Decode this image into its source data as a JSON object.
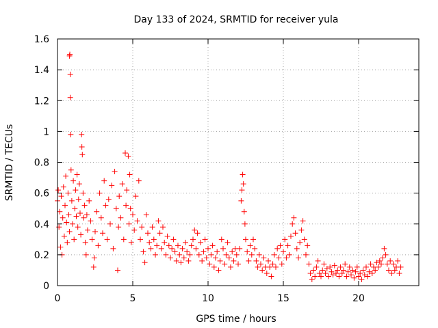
{
  "chart_data": {
    "type": "scatter",
    "title": "Day 133 of 2024, SRMTID for receiver yula",
    "xlabel": "GPS time / hours",
    "ylabel": "SRMTID / TECUs",
    "xlim": [
      0,
      24
    ],
    "ylim": [
      0,
      1.6
    ],
    "x_ticks": [
      0,
      5,
      10,
      15,
      20
    ],
    "x_tick_labels": [
      "0",
      "5",
      "10",
      "15",
      "20"
    ],
    "y_ticks": [
      0,
      0.2,
      0.4,
      0.6,
      0.8,
      1,
      1.2,
      1.4,
      1.6
    ],
    "y_tick_labels": [
      "0",
      "0.2",
      "0.4",
      "0.6",
      "0.8",
      "1",
      "1.2",
      "1.4",
      "1.6"
    ],
    "grid": true,
    "marker": "+",
    "series": [
      {
        "name": "SRMTID",
        "color": "#ff0000",
        "points": [
          [
            0.0,
            0.55
          ],
          [
            0.05,
            0.62
          ],
          [
            0.1,
            0.38
          ],
          [
            0.15,
            0.48
          ],
          [
            0.2,
            0.25
          ],
          [
            0.25,
            0.58
          ],
          [
            0.3,
            0.2
          ],
          [
            0.35,
            0.44
          ],
          [
            0.4,
            0.64
          ],
          [
            0.45,
            0.32
          ],
          [
            0.5,
            0.52
          ],
          [
            0.55,
            0.71
          ],
          [
            0.6,
            0.41
          ],
          [
            0.65,
            0.28
          ],
          [
            0.7,
            0.6
          ],
          [
            0.75,
            0.46
          ],
          [
            0.8,
            0.35
          ],
          [
            0.8,
            1.49
          ],
          [
            0.82,
            1.5
          ],
          [
            0.85,
            1.37
          ],
          [
            0.85,
            1.22
          ],
          [
            0.88,
            0.98
          ],
          [
            0.9,
            0.75
          ],
          [
            0.95,
            0.55
          ],
          [
            1.0,
            0.4
          ],
          [
            1.05,
            0.68
          ],
          [
            1.1,
            0.3
          ],
          [
            1.15,
            0.5
          ],
          [
            1.2,
            0.62
          ],
          [
            1.25,
            0.45
          ],
          [
            1.3,
            0.72
          ],
          [
            1.35,
            0.38
          ],
          [
            1.4,
            0.56
          ],
          [
            1.45,
            0.66
          ],
          [
            1.5,
            0.47
          ],
          [
            1.55,
            0.33
          ],
          [
            1.6,
            0.98
          ],
          [
            1.62,
            0.9
          ],
          [
            1.65,
            0.85
          ],
          [
            1.7,
            0.6
          ],
          [
            1.75,
            0.44
          ],
          [
            1.8,
            0.52
          ],
          [
            1.85,
            0.28
          ],
          [
            1.9,
            0.2
          ],
          [
            1.95,
            0.46
          ],
          [
            2.0,
            0.36
          ],
          [
            2.1,
            0.55
          ],
          [
            2.2,
            0.42
          ],
          [
            2.3,
            0.3
          ],
          [
            2.4,
            0.12
          ],
          [
            2.45,
            0.18
          ],
          [
            2.5,
            0.35
          ],
          [
            2.6,
            0.48
          ],
          [
            2.7,
            0.26
          ],
          [
            2.8,
            0.6
          ],
          [
            2.9,
            0.44
          ],
          [
            3.0,
            0.34
          ],
          [
            3.1,
            0.68
          ],
          [
            3.2,
            0.52
          ],
          [
            3.3,
            0.3
          ],
          [
            3.4,
            0.56
          ],
          [
            3.5,
            0.4
          ],
          [
            3.6,
            0.65
          ],
          [
            3.7,
            0.24
          ],
          [
            3.8,
            0.74
          ],
          [
            3.9,
            0.5
          ],
          [
            4.0,
            0.1
          ],
          [
            4.05,
            0.38
          ],
          [
            4.1,
            0.58
          ],
          [
            4.2,
            0.44
          ],
          [
            4.3,
            0.66
          ],
          [
            4.4,
            0.3
          ],
          [
            4.5,
            0.86
          ],
          [
            4.55,
            0.52
          ],
          [
            4.6,
            0.62
          ],
          [
            4.7,
            0.84
          ],
          [
            4.75,
            0.4
          ],
          [
            4.8,
            0.72
          ],
          [
            4.85,
            0.5
          ],
          [
            4.9,
            0.28
          ],
          [
            5.0,
            0.46
          ],
          [
            5.1,
            0.36
          ],
          [
            5.2,
            0.58
          ],
          [
            5.3,
            0.42
          ],
          [
            5.4,
            0.68
          ],
          [
            5.5,
            0.3
          ],
          [
            5.6,
            0.38
          ],
          [
            5.7,
            0.22
          ],
          [
            5.8,
            0.15
          ],
          [
            5.9,
            0.46
          ],
          [
            6.0,
            0.34
          ],
          [
            6.1,
            0.28
          ],
          [
            6.2,
            0.24
          ],
          [
            6.3,
            0.38
          ],
          [
            6.4,
            0.3
          ],
          [
            6.5,
            0.2
          ],
          [
            6.6,
            0.26
          ],
          [
            6.7,
            0.42
          ],
          [
            6.8,
            0.34
          ],
          [
            6.9,
            0.24
          ],
          [
            7.0,
            0.38
          ],
          [
            7.1,
            0.28
          ],
          [
            7.2,
            0.2
          ],
          [
            7.3,
            0.32
          ],
          [
            7.4,
            0.26
          ],
          [
            7.5,
            0.18
          ],
          [
            7.6,
            0.24
          ],
          [
            7.7,
            0.3
          ],
          [
            7.8,
            0.22
          ],
          [
            7.9,
            0.16
          ],
          [
            8.0,
            0.26
          ],
          [
            8.1,
            0.2
          ],
          [
            8.2,
            0.15
          ],
          [
            8.3,
            0.24
          ],
          [
            8.4,
            0.18
          ],
          [
            8.5,
            0.28
          ],
          [
            8.6,
            0.22
          ],
          [
            8.7,
            0.16
          ],
          [
            8.8,
            0.2
          ],
          [
            8.9,
            0.26
          ],
          [
            9.0,
            0.3
          ],
          [
            9.1,
            0.36
          ],
          [
            9.2,
            0.24
          ],
          [
            9.3,
            0.34
          ],
          [
            9.4,
            0.2
          ],
          [
            9.5,
            0.28
          ],
          [
            9.6,
            0.16
          ],
          [
            9.7,
            0.22
          ],
          [
            9.8,
            0.3
          ],
          [
            9.9,
            0.18
          ],
          [
            10.0,
            0.24
          ],
          [
            10.1,
            0.14
          ],
          [
            10.2,
            0.2
          ],
          [
            10.3,
            0.26
          ],
          [
            10.4,
            0.12
          ],
          [
            10.5,
            0.18
          ],
          [
            10.6,
            0.22
          ],
          [
            10.7,
            0.1
          ],
          [
            10.8,
            0.16
          ],
          [
            10.9,
            0.3
          ],
          [
            11.0,
            0.24
          ],
          [
            11.1,
            0.14
          ],
          [
            11.2,
            0.2
          ],
          [
            11.3,
            0.28
          ],
          [
            11.4,
            0.18
          ],
          [
            11.5,
            0.12
          ],
          [
            11.6,
            0.22
          ],
          [
            11.7,
            0.16
          ],
          [
            11.8,
            0.24
          ],
          [
            11.9,
            0.2
          ],
          [
            12.0,
            0.14
          ],
          [
            12.1,
            0.24
          ],
          [
            12.2,
            0.55
          ],
          [
            12.25,
            0.62
          ],
          [
            12.3,
            0.72
          ],
          [
            12.35,
            0.66
          ],
          [
            12.4,
            0.48
          ],
          [
            12.45,
            0.4
          ],
          [
            12.5,
            0.3
          ],
          [
            12.6,
            0.22
          ],
          [
            12.7,
            0.16
          ],
          [
            12.8,
            0.26
          ],
          [
            12.9,
            0.2
          ],
          [
            13.0,
            0.3
          ],
          [
            13.1,
            0.24
          ],
          [
            13.2,
            0.16
          ],
          [
            13.3,
            0.12
          ],
          [
            13.4,
            0.2
          ],
          [
            13.5,
            0.14
          ],
          [
            13.6,
            0.1
          ],
          [
            13.7,
            0.18
          ],
          [
            13.8,
            0.12
          ],
          [
            13.9,
            0.08
          ],
          [
            14.0,
            0.16
          ],
          [
            14.1,
            0.12
          ],
          [
            14.2,
            0.06
          ],
          [
            14.3,
            0.14
          ],
          [
            14.4,
            0.2
          ],
          [
            14.5,
            0.12
          ],
          [
            14.6,
            0.24
          ],
          [
            14.7,
            0.18
          ],
          [
            14.8,
            0.26
          ],
          [
            14.9,
            0.14
          ],
          [
            15.0,
            0.22
          ],
          [
            15.1,
            0.3
          ],
          [
            15.2,
            0.18
          ],
          [
            15.3,
            0.26
          ],
          [
            15.4,
            0.2
          ],
          [
            15.5,
            0.32
          ],
          [
            15.6,
            0.4
          ],
          [
            15.7,
            0.44
          ],
          [
            15.8,
            0.34
          ],
          [
            15.9,
            0.24
          ],
          [
            16.0,
            0.18
          ],
          [
            16.1,
            0.28
          ],
          [
            16.2,
            0.36
          ],
          [
            16.3,
            0.42
          ],
          [
            16.4,
            0.3
          ],
          [
            16.5,
            0.2
          ],
          [
            16.6,
            0.26
          ],
          [
            16.7,
            0.14
          ],
          [
            16.8,
            0.08
          ],
          [
            16.9,
            0.04
          ],
          [
            17.0,
            0.1
          ],
          [
            17.1,
            0.06
          ],
          [
            17.2,
            0.12
          ],
          [
            17.3,
            0.16
          ],
          [
            17.4,
            0.08
          ],
          [
            17.5,
            0.06
          ],
          [
            17.6,
            0.1
          ],
          [
            17.7,
            0.14
          ],
          [
            17.8,
            0.08
          ],
          [
            17.9,
            0.11
          ],
          [
            18.0,
            0.06
          ],
          [
            18.1,
            0.12
          ],
          [
            18.2,
            0.09
          ],
          [
            18.3,
            0.07
          ],
          [
            18.4,
            0.13
          ],
          [
            18.5,
            0.08
          ],
          [
            18.6,
            0.1
          ],
          [
            18.7,
            0.06
          ],
          [
            18.8,
            0.12
          ],
          [
            18.9,
            0.08
          ],
          [
            19.0,
            0.1
          ],
          [
            19.1,
            0.14
          ],
          [
            19.2,
            0.06
          ],
          [
            19.3,
            0.09
          ],
          [
            19.4,
            0.12
          ],
          [
            19.5,
            0.07
          ],
          [
            19.6,
            0.1
          ],
          [
            19.7,
            0.05
          ],
          [
            19.8,
            0.09
          ],
          [
            19.9,
            0.12
          ],
          [
            20.0,
            0.06
          ],
          [
            20.1,
            0.08
          ],
          [
            20.2,
            0.04
          ],
          [
            20.3,
            0.1
          ],
          [
            20.4,
            0.07
          ],
          [
            20.5,
            0.12
          ],
          [
            20.6,
            0.06
          ],
          [
            20.7,
            0.09
          ],
          [
            20.8,
            0.14
          ],
          [
            20.9,
            0.08
          ],
          [
            21.0,
            0.12
          ],
          [
            21.1,
            0.1
          ],
          [
            21.2,
            0.15
          ],
          [
            21.3,
            0.12
          ],
          [
            21.4,
            0.16
          ],
          [
            21.5,
            0.14
          ],
          [
            21.6,
            0.18
          ],
          [
            21.7,
            0.24
          ],
          [
            21.8,
            0.2
          ],
          [
            21.9,
            0.14
          ],
          [
            22.0,
            0.1
          ],
          [
            22.1,
            0.16
          ],
          [
            22.2,
            0.08
          ],
          [
            22.3,
            0.14
          ],
          [
            22.4,
            0.1
          ],
          [
            22.5,
            0.12
          ],
          [
            22.6,
            0.16
          ],
          [
            22.7,
            0.08
          ],
          [
            22.8,
            0.12
          ]
        ]
      }
    ]
  }
}
